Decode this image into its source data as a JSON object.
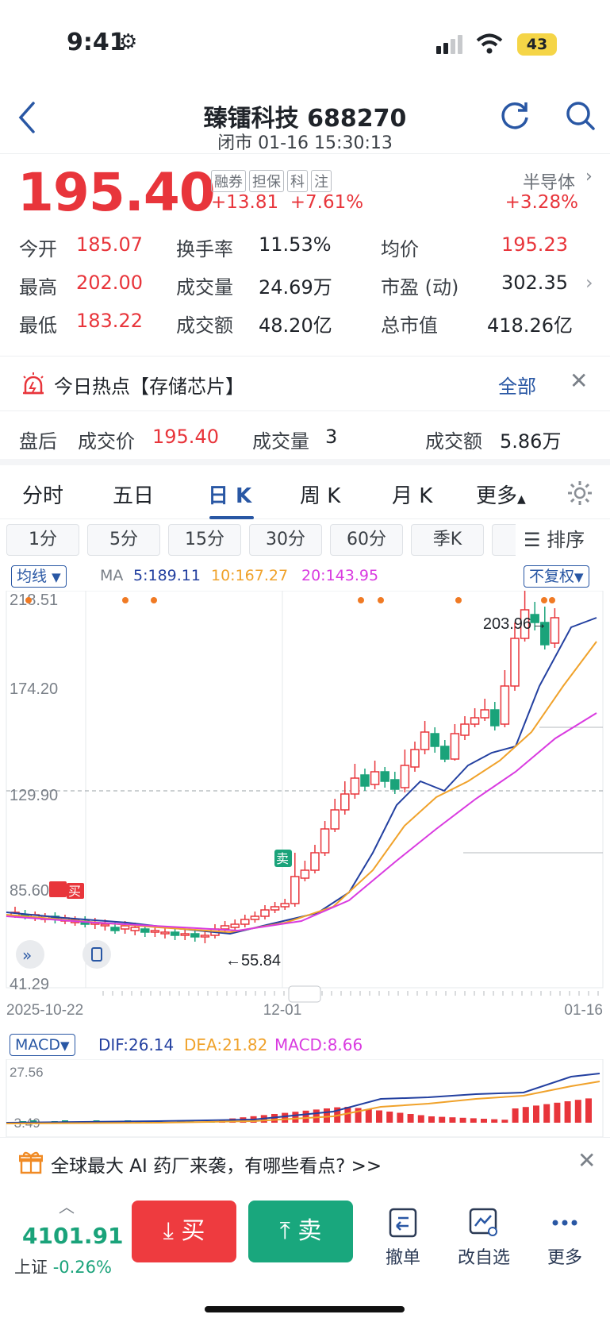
{
  "status": {
    "time": "9:41",
    "battery": "43"
  },
  "nav": {
    "title": "臻镭科技 688270",
    "subtitle": "闭市 01-16 15:30:13"
  },
  "quote": {
    "price": "195.40",
    "tags": [
      "融券",
      "担保",
      "科",
      "注"
    ],
    "change": "+13.81",
    "change_pct": "+7.61%",
    "sector": "半导体",
    "sector_change": "+3.28%"
  },
  "stats": [
    [
      {
        "label": "今开",
        "value": "185.07"
      },
      {
        "label": "换手率",
        "value": "11.53%"
      },
      {
        "label": "均价",
        "value": "195.23"
      }
    ],
    [
      {
        "label": "最高",
        "value": "202.00"
      },
      {
        "label": "成交量",
        "value": "24.69万"
      },
      {
        "label": "市盈 (动)",
        "value": "302.35"
      }
    ],
    [
      {
        "label": "最低",
        "value": "183.22"
      },
      {
        "label": "成交额",
        "value": "48.20亿"
      },
      {
        "label": "总市值",
        "value": "418.26亿"
      }
    ]
  ],
  "hot": {
    "text": "今日热点【存储芯片】",
    "all": "全部"
  },
  "after_hours": {
    "label": "盘后",
    "price_label": "成交价",
    "price": "195.40",
    "vol_label": "成交量",
    "vol": "3",
    "amt_label": "成交额",
    "amt": "5.86万"
  },
  "tabs": [
    "分时",
    "五日",
    "日 K",
    "周 K",
    "月 K",
    "更多"
  ],
  "subtabs": [
    "1分",
    "5分",
    "15分",
    "30分",
    "60分",
    "季K"
  ],
  "sort_label": "排序",
  "ma": {
    "selector": "均线",
    "label": "MA",
    "ma5": "5:189.11",
    "ma10": "10:167.27",
    "ma20": "20:143.95",
    "adjust": "不复权"
  },
  "kline": {
    "y_labels": [
      "218.51",
      "174.20",
      "129.90",
      "85.60",
      "41.29"
    ],
    "x_labels": [
      "2025-10-22",
      "12-01",
      "01-16"
    ],
    "max_label": "203.96→",
    "min_label": "←55.84",
    "buy_marker": "买",
    "sell_marker": "卖",
    "colors": {
      "up": "#e8353b",
      "down": "#1aa37a",
      "ma5": "#2340a0",
      "ma10": "#f0a22b",
      "ma20": "#d93be0"
    }
  },
  "macd": {
    "selector": "MACD",
    "dif": "DIF:26.14",
    "dea": "DEA:21.82",
    "macd": "MACD:8.66",
    "y_top": "27.56",
    "y_bottom": "-3.49"
  },
  "banner": {
    "text": "全球最大 AI 药厂来袭，有哪些看点? >>"
  },
  "index": {
    "value": "4101.91",
    "name": "上证",
    "change": "-0.26%"
  },
  "buttons": {
    "buy": "买",
    "sell": "卖"
  },
  "tools": [
    "撤单",
    "改自选",
    "更多"
  ]
}
